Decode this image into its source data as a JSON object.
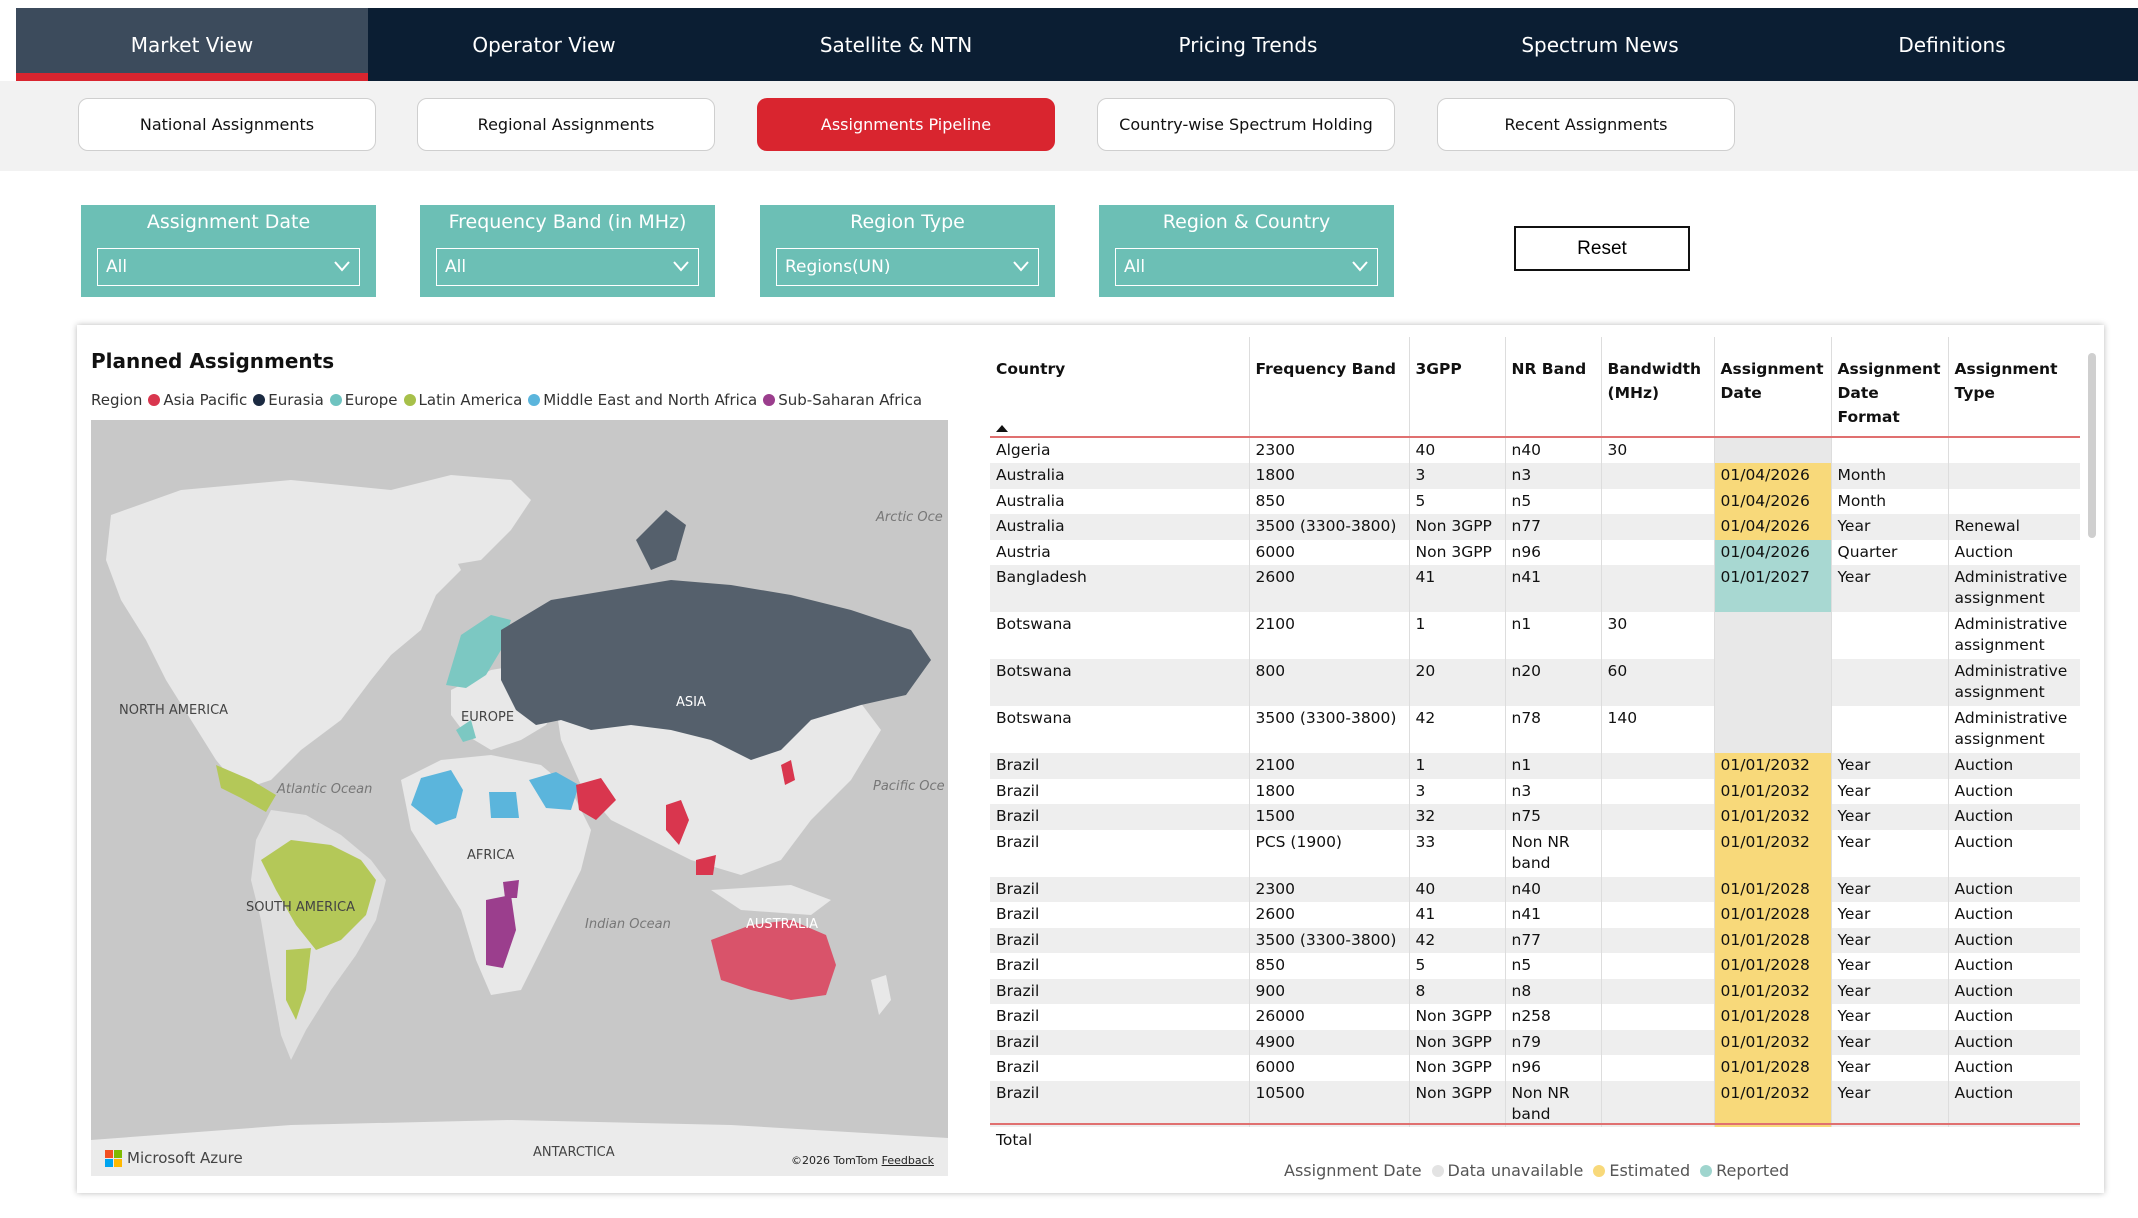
{
  "nav": {
    "tabs": [
      {
        "label": "Market View",
        "active": true
      },
      {
        "label": "Operator View"
      },
      {
        "label": "Satellite & NTN"
      },
      {
        "label": "Pricing Trends"
      },
      {
        "label": "Spectrum News"
      },
      {
        "label": "Definitions"
      }
    ]
  },
  "subtabs": [
    {
      "label": "National Assignments"
    },
    {
      "label": "Regional Assignments"
    },
    {
      "label": "Assignments Pipeline",
      "active": true
    },
    {
      "label": "Country-wise Spectrum Holding"
    },
    {
      "label": "Recent Assignments"
    }
  ],
  "filters": [
    {
      "title": "Assignment Date",
      "value": "All"
    },
    {
      "title": "Frequency Band (in MHz)",
      "value": "All"
    },
    {
      "title": "Region Type",
      "value": "Regions(UN)"
    },
    {
      "title": "Region & Country",
      "value": "All"
    }
  ],
  "reset_label": "Reset",
  "map": {
    "title": "Planned Assignments",
    "legend_label": "Region",
    "legend": [
      {
        "name": "Asia Pacific",
        "color": "#d9364e"
      },
      {
        "name": "Eurasia",
        "color": "#1b2a41"
      },
      {
        "name": "Europe",
        "color": "#6fc3c0"
      },
      {
        "name": "Latin America",
        "color": "#a7c04a"
      },
      {
        "name": "Middle East and North Africa",
        "color": "#5bb5dc"
      },
      {
        "name": "Sub-Saharan Africa",
        "color": "#9b3e8d"
      }
    ],
    "labels": {
      "north_america": "NORTH AMERICA",
      "south_america": "SOUTH AMERICA",
      "europe": "EUROPE",
      "africa": "AFRICA",
      "asia": "ASIA",
      "australia": "AUSTRALIA",
      "antarctica": "ANTARCTICA",
      "atlantic": "Atlantic Ocean",
      "pacific": "Pacific Oce",
      "indian": "Indian Ocean",
      "arctic": "Arctic Oce"
    },
    "brand": "Microsoft Azure",
    "copyright": "©2026 TomTom",
    "feedback": "Feedback"
  },
  "table": {
    "columns": [
      "Country",
      "Frequency Band",
      "3GPP",
      "NR Band",
      "Bandwidth (MHz)",
      "Assignment Date",
      "Assignment Date Format",
      "Assignment Type"
    ],
    "rows": [
      {
        "c": "Algeria",
        "f": "2300",
        "g": "40",
        "n": "n40",
        "b": "30",
        "d": "",
        "s": "",
        "fm": "",
        "t": ""
      },
      {
        "c": "Australia",
        "f": "1800",
        "g": "3",
        "n": "n3",
        "b": "",
        "d": "01/04/2026",
        "s": "est",
        "fm": "Month",
        "t": ""
      },
      {
        "c": "Australia",
        "f": "850",
        "g": "5",
        "n": "n5",
        "b": "",
        "d": "01/04/2026",
        "s": "est",
        "fm": "Month",
        "t": ""
      },
      {
        "c": "Australia",
        "f": "3500 (3300-3800)",
        "g": "Non 3GPP",
        "n": "n77",
        "b": "",
        "d": "01/04/2026",
        "s": "est",
        "fm": "Year",
        "t": "Renewal"
      },
      {
        "c": "Austria",
        "f": "6000",
        "g": "Non 3GPP",
        "n": "n96",
        "b": "",
        "d": "01/04/2026",
        "s": "rep",
        "fm": "Quarter",
        "t": "Auction"
      },
      {
        "c": "Bangladesh",
        "f": "2600",
        "g": "41",
        "n": "n41",
        "b": "",
        "d": "01/01/2027",
        "s": "rep",
        "fm": "Year",
        "t": "Administrative assignment",
        "tall": true
      },
      {
        "c": "Botswana",
        "f": "2100",
        "g": "1",
        "n": "n1",
        "b": "30",
        "d": "",
        "s": "",
        "fm": "",
        "t": "Administrative assignment",
        "tall": true
      },
      {
        "c": "Botswana",
        "f": "800",
        "g": "20",
        "n": "n20",
        "b": "60",
        "d": "",
        "s": "",
        "fm": "",
        "t": "Administrative assignment",
        "tall": true
      },
      {
        "c": "Botswana",
        "f": "3500 (3300-3800)",
        "g": "42",
        "n": "n78",
        "b": "140",
        "d": "",
        "s": "",
        "fm": "",
        "t": "Administrative assignment",
        "tall": true
      },
      {
        "c": "Brazil",
        "f": "2100",
        "g": "1",
        "n": "n1",
        "b": "",
        "d": "01/01/2032",
        "s": "est",
        "fm": "Year",
        "t": "Auction"
      },
      {
        "c": "Brazil",
        "f": "1800",
        "g": "3",
        "n": "n3",
        "b": "",
        "d": "01/01/2032",
        "s": "est",
        "fm": "Year",
        "t": "Auction"
      },
      {
        "c": "Brazil",
        "f": "1500",
        "g": "32",
        "n": "n75",
        "b": "",
        "d": "01/01/2032",
        "s": "est",
        "fm": "Year",
        "t": "Auction"
      },
      {
        "c": "Brazil",
        "f": "PCS (1900)",
        "g": "33",
        "n": "Non NR band",
        "b": "",
        "d": "01/01/2032",
        "s": "est",
        "fm": "Year",
        "t": "Auction",
        "tall": true
      },
      {
        "c": "Brazil",
        "f": "2300",
        "g": "40",
        "n": "n40",
        "b": "",
        "d": "01/01/2028",
        "s": "est",
        "fm": "Year",
        "t": "Auction"
      },
      {
        "c": "Brazil",
        "f": "2600",
        "g": "41",
        "n": "n41",
        "b": "",
        "d": "01/01/2028",
        "s": "est",
        "fm": "Year",
        "t": "Auction"
      },
      {
        "c": "Brazil",
        "f": "3500 (3300-3800)",
        "g": "42",
        "n": "n77",
        "b": "",
        "d": "01/01/2028",
        "s": "est",
        "fm": "Year",
        "t": "Auction"
      },
      {
        "c": "Brazil",
        "f": "850",
        "g": "5",
        "n": "n5",
        "b": "",
        "d": "01/01/2028",
        "s": "est",
        "fm": "Year",
        "t": "Auction"
      },
      {
        "c": "Brazil",
        "f": "900",
        "g": "8",
        "n": "n8",
        "b": "",
        "d": "01/01/2032",
        "s": "est",
        "fm": "Year",
        "t": "Auction"
      },
      {
        "c": "Brazil",
        "f": "26000",
        "g": "Non 3GPP",
        "n": "n258",
        "b": "",
        "d": "01/01/2028",
        "s": "est",
        "fm": "Year",
        "t": "Auction"
      },
      {
        "c": "Brazil",
        "f": "4900",
        "g": "Non 3GPP",
        "n": "n79",
        "b": "",
        "d": "01/01/2032",
        "s": "est",
        "fm": "Year",
        "t": "Auction"
      },
      {
        "c": "Brazil",
        "f": "6000",
        "g": "Non 3GPP",
        "n": "n96",
        "b": "",
        "d": "01/01/2028",
        "s": "est",
        "fm": "Year",
        "t": "Auction"
      },
      {
        "c": "Brazil",
        "f": "10500",
        "g": "Non 3GPP",
        "n": "Non NR band",
        "b": "",
        "d": "01/01/2032",
        "s": "est",
        "fm": "Year",
        "t": "Auction"
      }
    ],
    "total_label": "Total"
  },
  "date_legend": {
    "label": "Assignment Date",
    "items": [
      {
        "name": "Data unavailable",
        "color": "#e3e3e3"
      },
      {
        "name": "Estimated",
        "color": "#f8d97a"
      },
      {
        "name": "Reported",
        "color": "#9fd5ce"
      }
    ]
  }
}
